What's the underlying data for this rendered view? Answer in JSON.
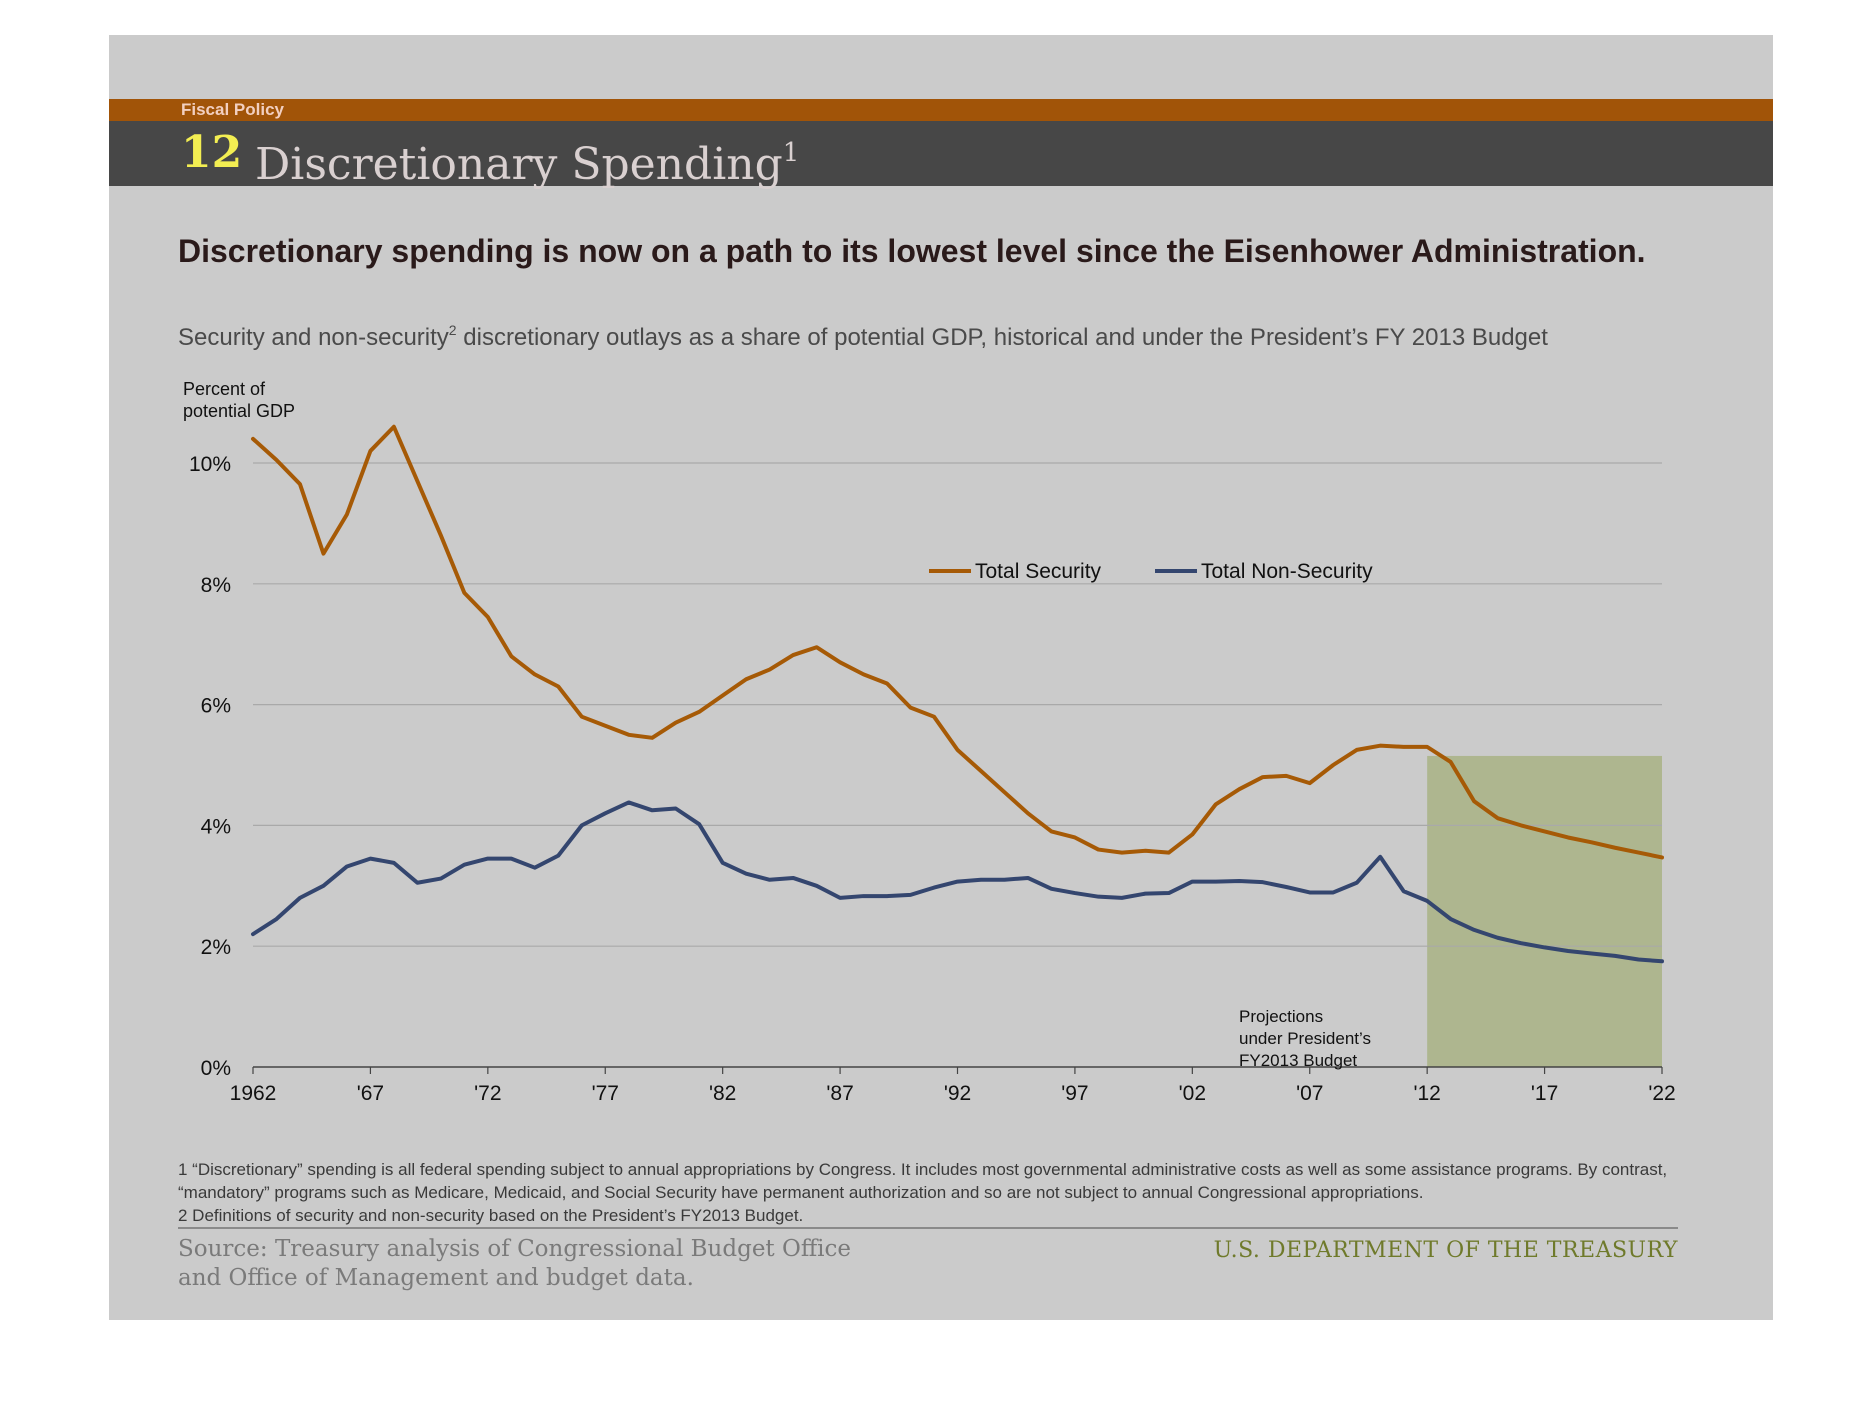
{
  "header": {
    "section": "Fiscal Policy",
    "number": "12",
    "title": "Discretionary Spending",
    "title_footnote": "1"
  },
  "headline": "Discretionary spending is now on a path to its lowest level since the Eisenhower Administration.",
  "subtitle": {
    "before": "Security and non-security",
    "sup": "2",
    "after": " discretionary outlays as a share of potential GDP, historical and under the President’s FY 2013 Budget"
  },
  "chart_data": {
    "type": "line",
    "ylabel": "Percent of potential GDP",
    "ylim": [
      0,
      10
    ],
    "xlim": [
      1962,
      2022
    ],
    "y_ticks": [
      0,
      2,
      4,
      6,
      8,
      10
    ],
    "y_tick_labels": [
      "0%",
      "2%",
      "4%",
      "6%",
      "8%",
      "10%"
    ],
    "x_ticks": [
      1962,
      1967,
      1972,
      1977,
      1982,
      1987,
      1992,
      1997,
      2002,
      2007,
      2012,
      2017,
      2022
    ],
    "x_tick_labels": [
      "1962",
      "'67",
      "'72",
      "'77",
      "'82",
      "'87",
      "'92",
      "'97",
      "'02",
      "'07",
      "'12",
      "'17",
      "'22"
    ],
    "grid": "horizontal",
    "legend_placement": "top-center-right",
    "projection_start": 2012,
    "projection_end": 2022,
    "projection_color": "#aeb68f",
    "annotation": "Projections under President’s FY2013 Budget",
    "x": [
      1962,
      1963,
      1964,
      1965,
      1966,
      1967,
      1968,
      1969,
      1970,
      1971,
      1972,
      1973,
      1974,
      1975,
      1976,
      1977,
      1978,
      1979,
      1980,
      1981,
      1982,
      1983,
      1984,
      1985,
      1986,
      1987,
      1988,
      1989,
      1990,
      1991,
      1992,
      1993,
      1994,
      1995,
      1996,
      1997,
      1998,
      1999,
      2000,
      2001,
      2002,
      2003,
      2004,
      2005,
      2006,
      2007,
      2008,
      2009,
      2010,
      2011,
      2012,
      2013,
      2014,
      2015,
      2016,
      2017,
      2018,
      2019,
      2020,
      2021,
      2022
    ],
    "series": [
      {
        "name": "Total Security",
        "color": "#a65a06",
        "values": [
          10.4,
          10.05,
          9.65,
          8.5,
          9.15,
          10.2,
          10.6,
          9.7,
          8.8,
          7.85,
          7.45,
          6.8,
          6.5,
          6.3,
          5.8,
          5.65,
          5.5,
          5.45,
          5.7,
          5.88,
          6.15,
          6.42,
          6.58,
          6.82,
          6.95,
          6.7,
          6.5,
          6.35,
          5.95,
          5.8,
          5.25,
          4.9,
          4.55,
          4.2,
          3.9,
          3.8,
          3.6,
          3.55,
          3.58,
          3.55,
          3.85,
          4.35,
          4.6,
          4.8,
          4.82,
          4.7,
          5.0,
          5.25,
          5.32,
          5.3,
          5.3,
          5.05,
          4.4,
          4.12,
          4.0,
          3.9,
          3.8,
          3.72,
          3.63,
          3.55,
          3.47
        ]
      },
      {
        "name": "Total Non-Security",
        "color": "#34466f",
        "values": [
          2.2,
          2.45,
          2.8,
          3.0,
          3.32,
          3.45,
          3.38,
          3.05,
          3.12,
          3.35,
          3.45,
          3.45,
          3.3,
          3.5,
          4.0,
          4.2,
          4.38,
          4.25,
          4.28,
          4.02,
          3.38,
          3.2,
          3.1,
          3.13,
          3.0,
          2.8,
          2.83,
          2.83,
          2.85,
          2.97,
          3.07,
          3.1,
          3.1,
          3.13,
          2.95,
          2.88,
          2.82,
          2.8,
          2.87,
          2.88,
          3.07,
          3.07,
          3.08,
          3.06,
          2.98,
          2.89,
          2.89,
          3.05,
          3.48,
          2.91,
          2.75,
          2.45,
          2.27,
          2.14,
          2.05,
          1.98,
          1.92,
          1.88,
          1.84,
          1.78,
          1.75
        ]
      }
    ]
  },
  "footnotes": [
    "1 “Discretionary” spending is all federal spending subject to annual appropriations by Congress. It includes most governmental administrative costs as well as some assistance programs. By contrast, “mandatory” programs such as Medicare, Medicaid, and Social Security have permanent authorization and so are not subject to annual Congressional appropriations.",
    "2 Definitions of security and non-security based on the President’s FY2013 Budget."
  ],
  "source": "Source: Treasury analysis of Congressional Budget Office and Office of Management and budget data.",
  "agency": "U.S. DEPARTMENT OF THE TREASURY"
}
